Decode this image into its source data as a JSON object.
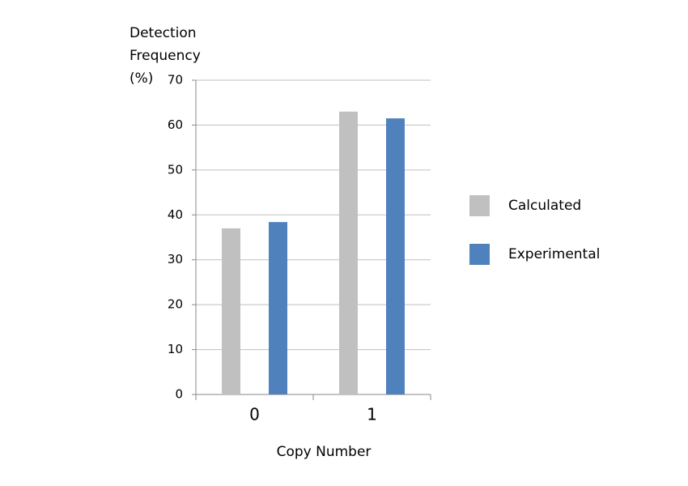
{
  "chart_data": {
    "type": "bar",
    "ylabel": "Detection Frequency (%)",
    "xlabel": "Copy Number",
    "categories": [
      "0",
      "1"
    ],
    "series": [
      {
        "name": "Calculated",
        "color": "#c0c0c0",
        "values": [
          37,
          63
        ]
      },
      {
        "name": "Experimental",
        "color": "#4f81bd",
        "values": [
          38.4,
          61.5
        ]
      }
    ],
    "ylim": [
      0,
      70
    ],
    "yticks": [
      0,
      10,
      20,
      30,
      40,
      50,
      60,
      70
    ],
    "grid": true,
    "legend": "right"
  }
}
